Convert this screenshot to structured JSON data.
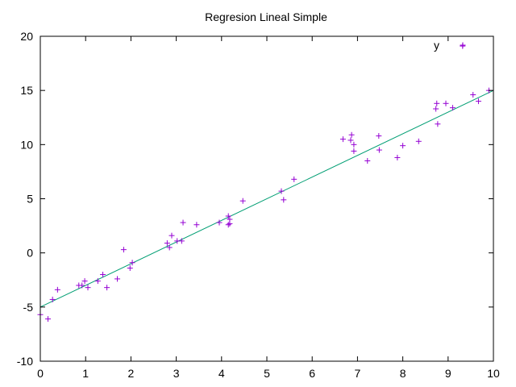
{
  "chart_data": {
    "type": "scatter",
    "title": "Regresion Lineal Simple",
    "xlabel": "",
    "ylabel": "",
    "xlim": [
      0,
      10
    ],
    "ylim": [
      -10,
      20
    ],
    "xticks": [
      "0",
      "1",
      "2",
      "3",
      "4",
      "5",
      "6",
      "7",
      "8",
      "9",
      "10"
    ],
    "yticks": [
      "-10",
      "-5",
      "0",
      "5",
      "10",
      "15",
      "20"
    ],
    "grid": false,
    "legend_position": "top-right",
    "colors": {
      "points": "#9400d3",
      "fit": "#009e73",
      "axes": "#000000"
    },
    "series": [
      {
        "name": "y",
        "kind": "scatter",
        "points": [
          [
            0.0,
            -5.7
          ],
          [
            0.17,
            -6.1
          ],
          [
            0.27,
            -4.3
          ],
          [
            0.38,
            -3.4
          ],
          [
            0.85,
            -3.0
          ],
          [
            0.92,
            -3.0
          ],
          [
            0.98,
            -2.6
          ],
          [
            1.05,
            -3.2
          ],
          [
            1.27,
            -2.6
          ],
          [
            1.38,
            -2.0
          ],
          [
            1.47,
            -3.2
          ],
          [
            1.7,
            -2.4
          ],
          [
            1.84,
            0.3
          ],
          [
            1.98,
            -1.4
          ],
          [
            2.03,
            -0.9
          ],
          [
            2.8,
            0.9
          ],
          [
            2.85,
            0.5
          ],
          [
            2.9,
            1.6
          ],
          [
            3.02,
            1.1
          ],
          [
            3.12,
            1.1
          ],
          [
            3.15,
            2.8
          ],
          [
            3.45,
            2.6
          ],
          [
            3.95,
            2.8
          ],
          [
            4.15,
            3.4
          ],
          [
            4.18,
            3.1
          ],
          [
            4.15,
            2.6
          ],
          [
            4.18,
            2.7
          ],
          [
            4.47,
            4.8
          ],
          [
            5.32,
            5.7
          ],
          [
            5.37,
            4.9
          ],
          [
            5.6,
            6.8
          ],
          [
            6.68,
            10.5
          ],
          [
            6.85,
            10.4
          ],
          [
            6.87,
            10.9
          ],
          [
            6.92,
            10.0
          ],
          [
            6.92,
            9.4
          ],
          [
            7.22,
            8.5
          ],
          [
            7.47,
            10.8
          ],
          [
            7.48,
            9.5
          ],
          [
            7.88,
            8.8
          ],
          [
            8.0,
            9.9
          ],
          [
            8.35,
            10.3
          ],
          [
            8.73,
            13.3
          ],
          [
            8.75,
            13.8
          ],
          [
            8.77,
            11.9
          ],
          [
            8.95,
            13.8
          ],
          [
            9.1,
            13.4
          ],
          [
            9.32,
            19.1
          ],
          [
            9.55,
            14.6
          ],
          [
            9.67,
            14.0
          ],
          [
            9.9,
            15.0
          ]
        ]
      },
      {
        "name": "",
        "kind": "line",
        "points": [
          [
            0,
            -5.0
          ],
          [
            10,
            15.0
          ]
        ]
      }
    ]
  }
}
